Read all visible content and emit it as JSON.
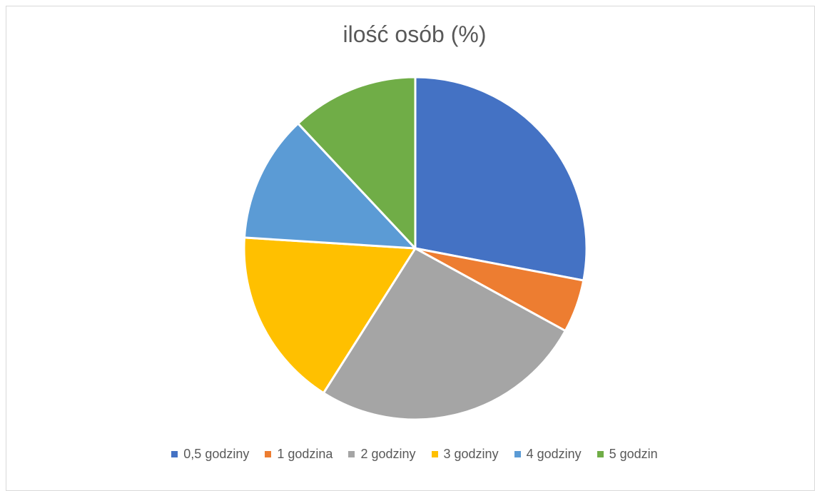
{
  "chart_data": {
    "type": "pie",
    "title": "ilość osób (%)",
    "categories": [
      "0,5 godziny",
      "1 godzina",
      "2 godziny",
      "3 godziny",
      "4 godziny",
      "5 godzin"
    ],
    "values": [
      28,
      5,
      26,
      17,
      12,
      12
    ],
    "colors": [
      "#4472C4",
      "#ED7D31",
      "#A5A5A5",
      "#FFC000",
      "#5B9BD5",
      "#70AD47"
    ],
    "legend_position": "bottom",
    "start_angle_deg": 0,
    "direction": "clockwise"
  }
}
